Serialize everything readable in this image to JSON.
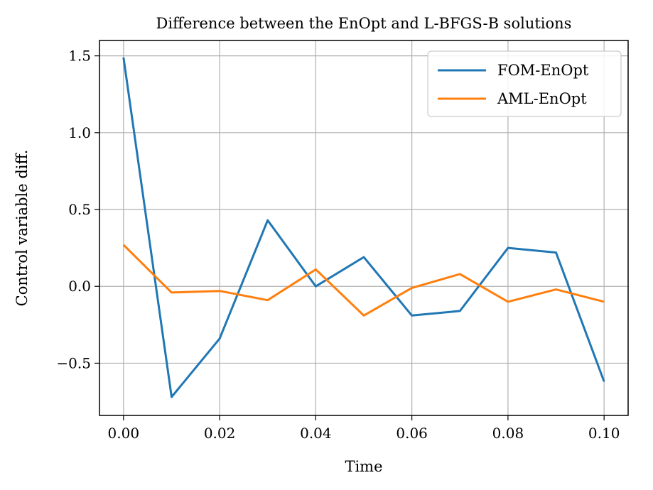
{
  "chart_data": {
    "type": "line",
    "title": "Difference between the EnOpt and L-BFGS-B solutions",
    "xlabel": "Time",
    "ylabel": "Control variable diff.",
    "xlim": [
      -0.005,
      0.105
    ],
    "ylim": [
      -0.84,
      1.6
    ],
    "xticks": [
      0.0,
      0.02,
      0.04,
      0.06,
      0.08,
      0.1
    ],
    "xtick_labels": [
      "0.00",
      "0.02",
      "0.04",
      "0.06",
      "0.08",
      "0.10"
    ],
    "yticks": [
      -0.5,
      0.0,
      0.5,
      1.0,
      1.5
    ],
    "ytick_labels": [
      "−0.5",
      "0.0",
      "0.5",
      "1.0",
      "1.5"
    ],
    "grid": true,
    "legend_position": "top-right",
    "x": [
      0.0,
      0.01,
      0.02,
      0.03,
      0.04,
      0.05,
      0.06,
      0.07,
      0.08,
      0.09,
      0.1
    ],
    "series": [
      {
        "name": "FOM-EnOpt",
        "color": "#1f77b4",
        "values": [
          1.49,
          -0.72,
          -0.34,
          0.43,
          0.0,
          0.19,
          -0.19,
          -0.16,
          0.25,
          0.22,
          -0.62
        ]
      },
      {
        "name": "AML-EnOpt",
        "color": "#ff7f0e",
        "values": [
          0.27,
          -0.04,
          -0.03,
          -0.09,
          0.11,
          -0.19,
          -0.01,
          0.08,
          -0.1,
          -0.02,
          -0.1
        ]
      }
    ]
  }
}
